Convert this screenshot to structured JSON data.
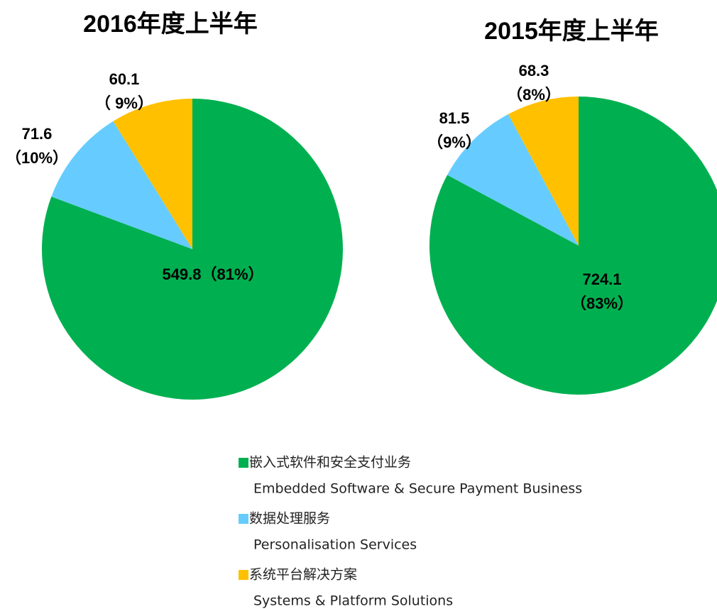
{
  "chart_data": [
    {
      "type": "pie",
      "title": "2016年度上半年",
      "values": [
        549.8,
        71.6,
        60.1
      ],
      "value_labels": [
        [
          "549.8（81%）"
        ],
        [
          "71.6",
          "（10%）"
        ],
        [
          "60.1",
          "（ 9%）"
        ]
      ],
      "colors": [
        "#00b050",
        "#66ccff",
        "#ffc000"
      ]
    },
    {
      "type": "pie",
      "title": "2015年度上半年",
      "values": [
        724.1,
        81.5,
        68.3
      ],
      "value_labels": [
        [
          "724.1",
          "（83%）"
        ],
        [
          "81.5",
          "（9%）"
        ],
        [
          "68.3",
          "（8%）"
        ]
      ],
      "colors": [
        "#00b050",
        "#66ccff",
        "#ffc000"
      ]
    }
  ],
  "legend": [
    {
      "name": "嵌入式软件和安全支付业务",
      "name_en": "Embedded Software & Secure Payment Business"
    },
    {
      "name": "数据处理服务",
      "name_en": "Personalisation Services"
    },
    {
      "name": "系统平台解决方案",
      "name_en": "Systems & Platform Solutions"
    }
  ]
}
